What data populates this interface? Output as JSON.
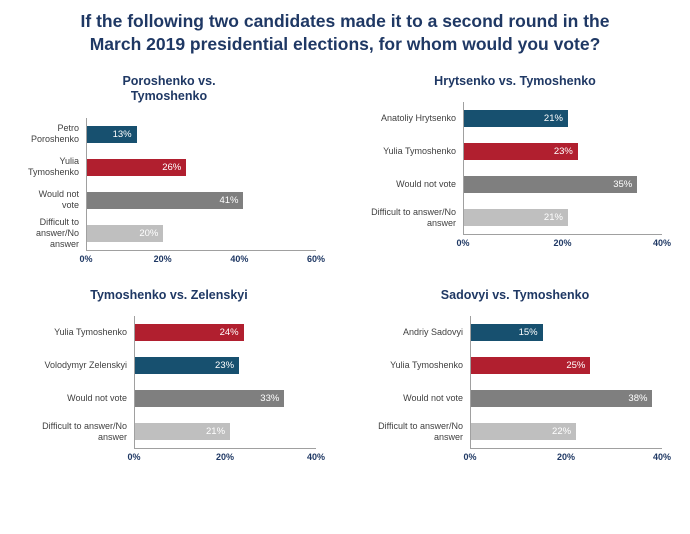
{
  "title_lines": [
    "If the following two candidates made it to a second round in the",
    "March 2019 presidential elections, for whom would you vote?"
  ],
  "colors": {
    "title_text": "#1f3864",
    "candidate_blue": "#17506f",
    "candidate_red": "#b11f2f",
    "would_not_vote_gray": "#7f7f7f",
    "difficult_light_gray": "#bfbfbf",
    "axis_line": "#a0a0a0"
  },
  "chart_data": [
    {
      "type": "bar",
      "orientation": "horizontal",
      "title": "Poroshenko vs. Tymoshenko",
      "categories": [
        "Petro Poroshenko",
        "Yulia Tymoshenko",
        "Would not vote",
        "Difficult to answer/No answer"
      ],
      "values": [
        13,
        26,
        41,
        20
      ],
      "data_labels": [
        "13%",
        "26%",
        "41%",
        "20%"
      ],
      "bar_colors": [
        "#17506f",
        "#b11f2f",
        "#7f7f7f",
        "#bfbfbf"
      ],
      "xlim": [
        0,
        60
      ],
      "ticks": [
        {
          "label": "0%",
          "value": 0
        },
        {
          "label": "20%",
          "value": 20
        },
        {
          "label": "40%",
          "value": 40
        },
        {
          "label": "60%",
          "value": 60
        }
      ],
      "grid": false,
      "legend": "none"
    },
    {
      "type": "bar",
      "orientation": "horizontal",
      "title": "Hrytsenko vs. Tymoshenko",
      "categories": [
        "Anatoliy Hrytsenko",
        "Yulia Tymoshenko",
        "Would not vote",
        "Difficult to answer/No answer"
      ],
      "values": [
        21,
        23,
        35,
        21
      ],
      "data_labels": [
        "21%",
        "23%",
        "35%",
        "21%"
      ],
      "bar_colors": [
        "#17506f",
        "#b11f2f",
        "#7f7f7f",
        "#bfbfbf"
      ],
      "xlim": [
        0,
        40
      ],
      "ticks": [
        {
          "label": "0%",
          "value": 0
        },
        {
          "label": "20%",
          "value": 20
        },
        {
          "label": "40%",
          "value": 40
        }
      ],
      "grid": false,
      "legend": "none"
    },
    {
      "type": "bar",
      "orientation": "horizontal",
      "title": "Tymoshenko vs. Zelenskyi",
      "categories": [
        "Yulia Tymoshenko",
        "Volodymyr Zelenskyi",
        "Would not vote",
        "Difficult to answer/No answer"
      ],
      "values": [
        24,
        23,
        33,
        21
      ],
      "data_labels": [
        "24%",
        "23%",
        "33%",
        "21%"
      ],
      "bar_colors": [
        "#b11f2f",
        "#17506f",
        "#7f7f7f",
        "#bfbfbf"
      ],
      "xlim": [
        0,
        40
      ],
      "ticks": [
        {
          "label": "0%",
          "value": 0
        },
        {
          "label": "20%",
          "value": 20
        },
        {
          "label": "40%",
          "value": 40
        }
      ],
      "grid": false,
      "legend": "none"
    },
    {
      "type": "bar",
      "orientation": "horizontal",
      "title": "Sadovyi vs. Tymoshenko",
      "categories": [
        "Andriy Sadovyi",
        "Yulia Tymoshenko",
        "Would not vote",
        "Difficult to answer/No answer"
      ],
      "values": [
        15,
        25,
        38,
        22
      ],
      "data_labels": [
        "15%",
        "25%",
        "38%",
        "22%"
      ],
      "bar_colors": [
        "#17506f",
        "#b11f2f",
        "#7f7f7f",
        "#bfbfbf"
      ],
      "xlim": [
        0,
        40
      ],
      "ticks": [
        {
          "label": "0%",
          "value": 0
        },
        {
          "label": "20%",
          "value": 20
        },
        {
          "label": "40%",
          "value": 40
        }
      ],
      "grid": false,
      "legend": "none"
    }
  ]
}
